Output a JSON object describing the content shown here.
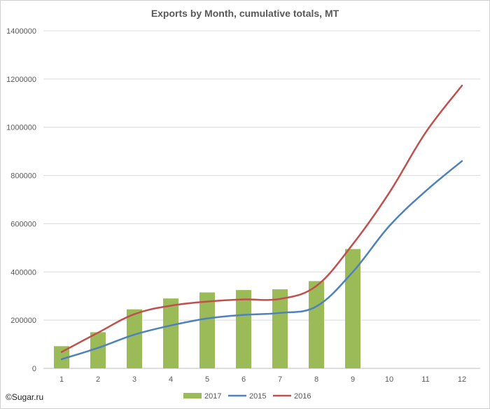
{
  "credit": "©Sugar.ru",
  "chart_data": {
    "type": "bar",
    "title": "Exports by Month, cumulative totals, MT",
    "xlabel": "",
    "ylabel": "",
    "categories": [
      "1",
      "2",
      "3",
      "4",
      "5",
      "6",
      "7",
      "8",
      "9",
      "10",
      "11",
      "12"
    ],
    "ylim": [
      0,
      1400000
    ],
    "yticks": [
      0,
      200000,
      400000,
      600000,
      800000,
      1000000,
      1200000,
      1400000
    ],
    "ytick_labels": [
      "0",
      "200000",
      "400000",
      "600000",
      "800000",
      "1000000",
      "1200000",
      "1400000"
    ],
    "grid": true,
    "legend_position": "bottom",
    "series": [
      {
        "name": "2017",
        "kind": "bar",
        "color": "#9bbb59",
        "values": [
          92000,
          150000,
          245000,
          290000,
          315000,
          325000,
          328000,
          362000,
          495000,
          null,
          null,
          null
        ]
      },
      {
        "name": "2015",
        "kind": "line",
        "color": "#4f81bd",
        "values": [
          38000,
          85000,
          140000,
          178000,
          207000,
          222000,
          230000,
          257000,
          400000,
          590000,
          735000,
          860000
        ]
      },
      {
        "name": "2016",
        "kind": "line",
        "color": "#c0504d",
        "values": [
          68000,
          148000,
          225000,
          260000,
          277000,
          286000,
          288000,
          342000,
          515000,
          728000,
          978000,
          1173000
        ]
      }
    ]
  }
}
